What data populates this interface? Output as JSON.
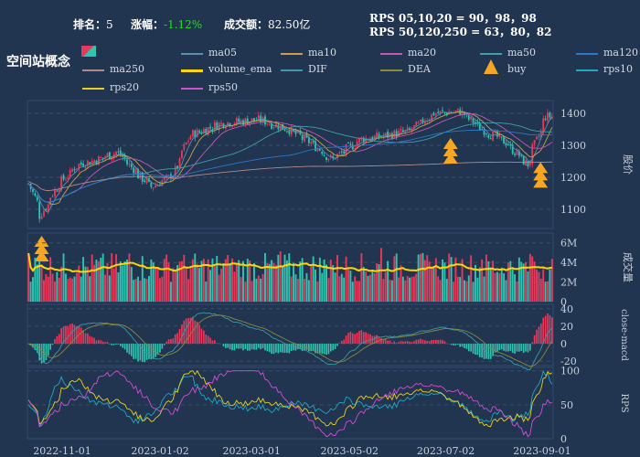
{
  "header": {
    "rank_label": "排名：",
    "rank_value": "5",
    "change_label": "涨幅：",
    "change_value": "-1.12%",
    "amount_label": "成交额：",
    "amount_value": "82.50亿",
    "rps_line1": "RPS 05,10,20 = 90，98，98",
    "rps_line2": "RPS 50,120,250 = 63，80，82",
    "concept": "空间站概念"
  },
  "legend": [
    {
      "name": "ma05",
      "color": "#5a8fb0"
    },
    {
      "name": "ma10",
      "color": "#c8a24a"
    },
    {
      "name": "ma20",
      "color": "#c05ab0"
    },
    {
      "name": "ma50",
      "color": "#3ea0a8"
    },
    {
      "name": "ma120",
      "color": "#2a78c8"
    },
    {
      "name": "ma250",
      "color": "#b08a8a"
    },
    {
      "name": "volume_ema",
      "color": "#ffd700"
    },
    {
      "name": "DIF",
      "color": "#3a9aa8"
    },
    {
      "name": "DEA",
      "color": "#8a8a3a"
    },
    {
      "name": "buy",
      "color": "#f5a623"
    },
    {
      "name": "rps10",
      "color": "#20a8c0"
    },
    {
      "name": "rps20",
      "color": "#e8d020"
    },
    {
      "name": "rps50",
      "color": "#d050d0"
    }
  ],
  "colors": {
    "up": "#e8395a",
    "down": "#2ec4b0",
    "background": "#213450",
    "grid": "#3a4e6a"
  },
  "chart_data": [
    {
      "type": "candlestick",
      "ylabel": "股价",
      "yticks": [
        1100,
        1200,
        1300,
        1400
      ],
      "ylim": [
        1040,
        1440
      ],
      "buy_signals_x": [
        "2022-10-19",
        "2023-07-05",
        "2023-08-31"
      ],
      "close_keypoints": [
        [
          "2022-10-10",
          1180
        ],
        [
          "2022-10-17",
          1080
        ],
        [
          "2022-10-28",
          1175
        ],
        [
          "2022-11-10",
          1240
        ],
        [
          "2022-11-22",
          1255
        ],
        [
          "2022-12-05",
          1280
        ],
        [
          "2022-12-20",
          1200
        ],
        [
          "2022-12-27",
          1170
        ],
        [
          "2023-01-10",
          1210
        ],
        [
          "2023-01-20",
          1330
        ],
        [
          "2023-02-10",
          1370
        ],
        [
          "2023-03-06",
          1380
        ],
        [
          "2023-03-24",
          1350
        ],
        [
          "2023-04-10",
          1300
        ],
        [
          "2023-04-21",
          1255
        ],
        [
          "2023-05-10",
          1320
        ],
        [
          "2023-05-25",
          1330
        ],
        [
          "2023-06-10",
          1345
        ],
        [
          "2023-06-25",
          1400
        ],
        [
          "2023-07-12",
          1405
        ],
        [
          "2023-07-26",
          1350
        ],
        [
          "2023-08-10",
          1310
        ],
        [
          "2023-08-24",
          1240
        ],
        [
          "2023-09-05",
          1390
        ]
      ]
    },
    {
      "type": "bar",
      "ylabel": "成交量",
      "yticks_labels": [
        "0",
        "2M",
        "4M",
        "6M"
      ],
      "ylim": [
        0,
        7
      ],
      "note": "volume bars with volume_ema overlay, values in millions"
    },
    {
      "type": "bar",
      "ylabel": "close-macd",
      "yticks": [
        -20,
        0,
        20,
        40
      ],
      "ylim": [
        -25,
        45
      ],
      "series": [
        {
          "name": "DIF"
        },
        {
          "name": "DEA"
        }
      ]
    },
    {
      "type": "line",
      "ylabel": "RPS",
      "yticks": [
        0,
        50,
        100
      ],
      "ylim": [
        0,
        105
      ],
      "series": [
        {
          "name": "rps10"
        },
        {
          "name": "rps20"
        },
        {
          "name": "rps50"
        }
      ]
    }
  ],
  "xaxis": {
    "ticks": [
      "2022-11-01",
      "2023-01-02",
      "2023-03-01",
      "2023-05-02",
      "2023-07-02",
      "2023-09-01"
    ],
    "start": "2022-10-10",
    "end": "2023-09-08"
  }
}
